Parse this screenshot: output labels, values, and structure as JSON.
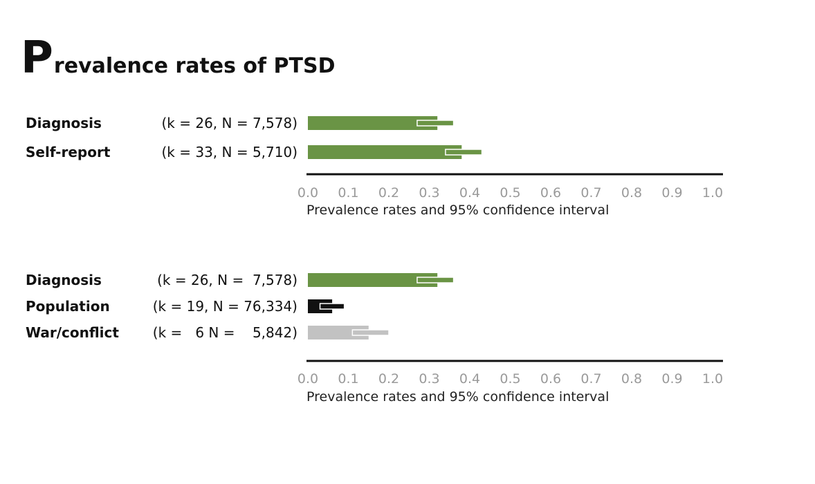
{
  "title": {
    "first_letter": "P",
    "rest": "revalence rates of PTSD"
  },
  "colors": {
    "green": "#6a9445",
    "black": "#111111",
    "gray": "#c2c2c2",
    "axis": "#111111"
  },
  "chart_data": [
    {
      "type": "bar",
      "orientation": "horizontal",
      "xlabel": "Prevalence rates and 95% confidence interval",
      "xlim": [
        0.0,
        1.0
      ],
      "xticks": [
        "0.0",
        "0.1",
        "0.2",
        "0.3",
        "0.4",
        "0.5",
        "0.6",
        "0.7",
        "0.8",
        "0.9",
        "1.0"
      ],
      "rows": [
        {
          "name": "Diagnosis",
          "stats": "(k = 26, N = 7,578)",
          "k": "26",
          "n": "7,578",
          "value": 0.32,
          "ci": [
            0.27,
            0.36
          ],
          "color": "green"
        },
        {
          "name": "Self-report",
          "stats": "(k = 33, N = 5,710)",
          "k": "33",
          "n": "5,710",
          "value": 0.38,
          "ci": [
            0.34,
            0.43
          ],
          "color": "green"
        }
      ]
    },
    {
      "type": "bar",
      "orientation": "horizontal",
      "xlabel": "Prevalence rates and 95% confidence interval",
      "xlim": [
        0.0,
        1.0
      ],
      "xticks": [
        "0.0",
        "0.1",
        "0.2",
        "0.3",
        "0.4",
        "0.5",
        "0.6",
        "0.7",
        "0.8",
        "0.9",
        "1.0"
      ],
      "rows": [
        {
          "name": "Diagnosis",
          "stats": "(k = 26, N =  7,578)",
          "k": "26",
          "n": "7,578",
          "value": 0.32,
          "ci": [
            0.27,
            0.36
          ],
          "color": "green"
        },
        {
          "name": "Population",
          "stats": "(k = 19, N = 76,334)",
          "k": "19",
          "n": "76,334",
          "value": 0.06,
          "ci": [
            0.03,
            0.09
          ],
          "color": "black"
        },
        {
          "name": "War/conflict",
          "stats": "(k =   6 N =    5,842)",
          "k": "6",
          "n": "5,842",
          "value": 0.15,
          "ci": [
            0.11,
            0.2
          ],
          "color": "gray"
        }
      ]
    }
  ]
}
